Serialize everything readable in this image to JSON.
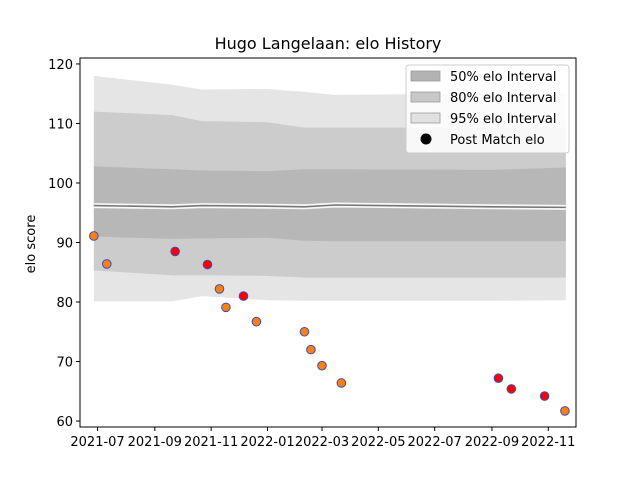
{
  "chart_data": {
    "type": "line",
    "title": "Hugo Langelaan: elo History",
    "xlabel": "",
    "ylabel": "elo score",
    "xlim": [
      "2021-06-12",
      "2022-12-01"
    ],
    "ylim": [
      59,
      121
    ],
    "x_ticks": [
      "2021-07",
      "2021-09",
      "2021-11",
      "2022-01",
      "2022-03",
      "2022-05",
      "2022-07",
      "2022-09",
      "2022-11"
    ],
    "y_ticks": [
      60,
      70,
      80,
      90,
      100,
      110,
      120
    ],
    "grid": false,
    "legend_position": "top-right",
    "legend": [
      {
        "label": "50% elo Interval",
        "kind": "band",
        "color": "#b3b3b3"
      },
      {
        "label": "80% elo Interval",
        "kind": "band",
        "color": "#c8c8c8"
      },
      {
        "label": "95% elo Interval",
        "kind": "band",
        "color": "#e1e1e1"
      },
      {
        "label": "Post Match elo",
        "kind": "marker",
        "color": "#000000"
      }
    ],
    "bands": {
      "x": [
        "2021-06-27",
        "2021-09-20",
        "2021-10-22",
        "2022-01-01",
        "2022-02-10",
        "2022-03-15",
        "2022-09-01",
        "2022-11-20"
      ],
      "mean": [
        96.2,
        96.0,
        96.2,
        96.1,
        96.0,
        96.3,
        96.0,
        95.9
      ],
      "i50": {
        "lower": [
          91.0,
          90.6,
          90.7,
          90.8,
          90.3,
          90.2,
          90.2,
          90.2
        ],
        "upper": [
          102.8,
          102.3,
          102.1,
          102.0,
          102.3,
          102.3,
          102.2,
          102.6
        ]
      },
      "i80": {
        "lower": [
          85.3,
          84.5,
          84.5,
          84.4,
          84.1,
          84.1,
          84.1,
          84.1
        ],
        "upper": [
          112.0,
          111.4,
          110.4,
          110.2,
          109.3,
          109.3,
          109.3,
          109.3
        ]
      },
      "i95": {
        "lower": [
          80.1,
          80.1,
          81.0,
          80.3,
          80.2,
          80.2,
          80.2,
          80.3
        ],
        "upper": [
          118.0,
          116.5,
          115.7,
          115.8,
          115.3,
          114.8,
          115.0,
          115.0
        ]
      }
    },
    "series": [
      {
        "name": "Post Match elo",
        "points": [
          {
            "x": "2021-06-27",
            "y": 91.1,
            "color": "#ff7f0e"
          },
          {
            "x": "2021-07-11",
            "y": 86.4,
            "color": "#ff7f0e"
          },
          {
            "x": "2021-09-23",
            "y": 88.5,
            "color": "#ff0000"
          },
          {
            "x": "2021-10-28",
            "y": 86.3,
            "color": "#ff0000"
          },
          {
            "x": "2021-11-10",
            "y": 82.2,
            "color": "#ff7f0e"
          },
          {
            "x": "2021-11-17",
            "y": 79.1,
            "color": "#ff7f0e"
          },
          {
            "x": "2021-12-06",
            "y": 81.0,
            "color": "#ff0000"
          },
          {
            "x": "2021-12-20",
            "y": 76.7,
            "color": "#ff7f0e"
          },
          {
            "x": "2022-02-10",
            "y": 75.0,
            "color": "#ff7f0e"
          },
          {
            "x": "2022-02-17",
            "y": 72.0,
            "color": "#ff7f0e"
          },
          {
            "x": "2022-03-01",
            "y": 69.3,
            "color": "#ff7f0e"
          },
          {
            "x": "2022-03-22",
            "y": 66.4,
            "color": "#ff7f0e"
          },
          {
            "x": "2022-09-08",
            "y": 67.2,
            "color": "#ff0000"
          },
          {
            "x": "2022-09-22",
            "y": 65.4,
            "color": "#ff0000"
          },
          {
            "x": "2022-10-28",
            "y": 64.2,
            "color": "#ff0000"
          },
          {
            "x": "2022-11-19",
            "y": 61.7,
            "color": "#ff7f0e"
          }
        ],
        "edge_color": "#3b4cc0"
      }
    ]
  }
}
